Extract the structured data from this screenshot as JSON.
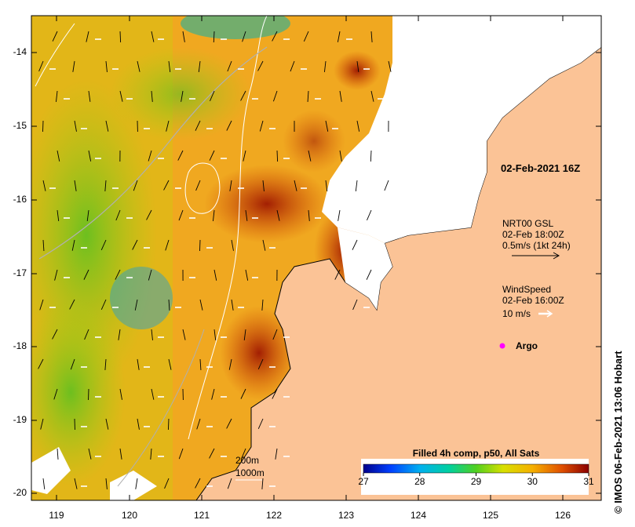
{
  "timestamp_label": "02-Feb-2021 16Z",
  "currents": {
    "line1": "NRT00 GSL",
    "line2": "02-Feb 18:00Z",
    "line3": "0.5m/s (1kt 24h)"
  },
  "wind": {
    "line1": "WindSpeed",
    "line2": "02-Feb 16:00Z",
    "line3": "10 m/s"
  },
  "argo_label": "Argo",
  "contours": {
    "depth1": "200m",
    "depth2": "1000m"
  },
  "colorbar": {
    "title": "Filled 4h comp, p50, All Sats",
    "ticks": [
      "27",
      "28",
      "29",
      "30",
      "31"
    ],
    "range": [
      27,
      31
    ]
  },
  "credit": "© IMOS 06-Feb-2021 13:06 Hobart",
  "axes": {
    "lon_ticks": [
      "119",
      "120",
      "121",
      "122",
      "123",
      "124",
      "125",
      "126"
    ],
    "lat_ticks": [
      "-14",
      "-15",
      "-16",
      "-17",
      "-18",
      "-19",
      "-20"
    ]
  },
  "colors": {
    "land": "#fbc396",
    "argo": "#ff00ff",
    "cloud": "#ffffff"
  }
}
